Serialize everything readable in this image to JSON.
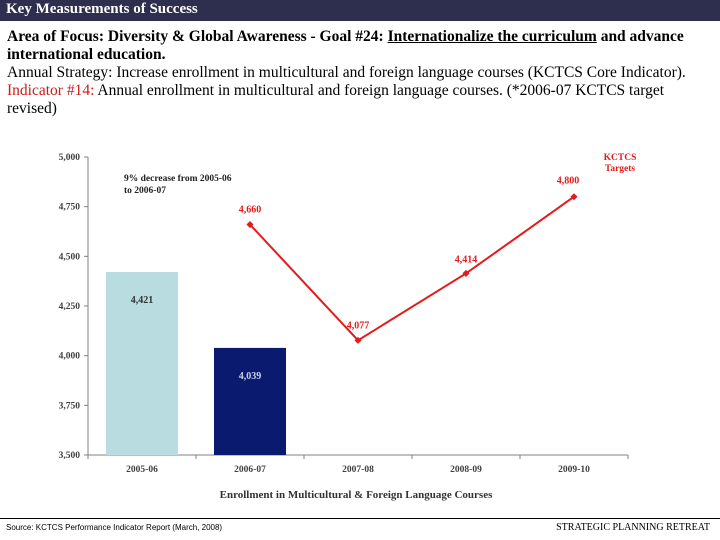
{
  "header": {
    "title": "Key Measurements of Success"
  },
  "intro": {
    "focus_line": "Area of Focus: Diversity & Global Awareness - Goal #24:",
    "goal_text": "Internationalize the curriculum",
    "focus_tail": "and advance international education.",
    "strategy": "Annual Strategy:  Increase enrollment in multicultural and foreign language courses (KCTCS Core Indicator).",
    "indicator_label": "Indicator #14:",
    "indicator_text": "Annual enrollment in multicultural and foreign language courses. (*2006-07 KCTCS target revised)"
  },
  "chart_data": {
    "type": "bar+line",
    "categories": [
      "2005-06",
      "2006-07",
      "2007-08",
      "2008-09",
      "2009-10"
    ],
    "bars": [
      {
        "category": "2005-06",
        "value": 4421,
        "label": "4,421",
        "color": "#b8dce0"
      },
      {
        "category": "2006-07",
        "value": 4039,
        "label": "4,039",
        "color": "#0a1a6e"
      }
    ],
    "targets": {
      "categories": [
        "2006-07",
        "2007-08",
        "2008-09",
        "2009-10"
      ],
      "values": [
        4660,
        4077,
        4414,
        4800
      ],
      "labels": [
        "4,660",
        "4,077",
        "4,414",
        "4,800"
      ],
      "color": "#e31b1b"
    },
    "ylim": [
      3500,
      5000
    ],
    "yticks": [
      3500,
      3750,
      4000,
      4250,
      4500,
      4750,
      5000
    ],
    "ytick_labels": [
      "3,500",
      "3,750",
      "4,000",
      "4,250",
      "4,500",
      "4,750",
      "5,000"
    ],
    "xlabel": "Enrollment in Multicultural & Foreign Language Courses",
    "annotation": "9% decrease from 2005-06 to 2006-07",
    "legend_label": "KCTCS Targets"
  },
  "footer": {
    "source": "Source:  KCTCS Performance Indicator Report (March, 2008)",
    "right_text": "STRATEGIC PLANNING RETREAT"
  }
}
